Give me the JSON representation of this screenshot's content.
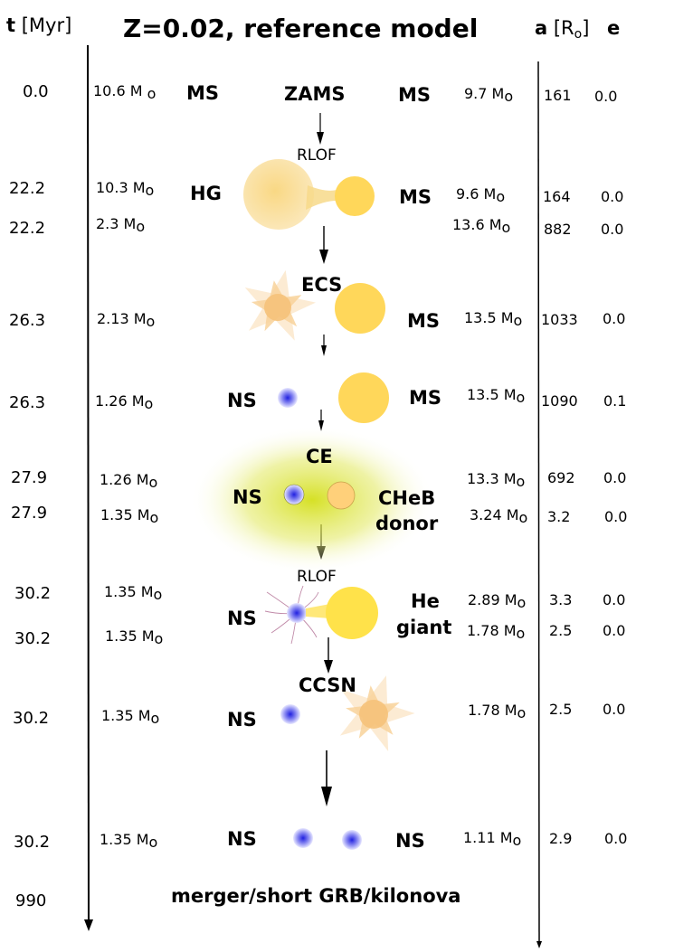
{
  "title": "Z=0.02, reference model",
  "headers": {
    "time_bold": "t",
    "time_unit": "[Myr]",
    "sep_bold": "a",
    "sep_unit_a": "[R",
    "sep_unit_sub": "o",
    "sep_unit_b": "]",
    "ecc": "e"
  },
  "mass_unit": "M",
  "mass_sub": "o",
  "stages": [
    {
      "t": "0.0",
      "m1": "10.6",
      "s1": "MS",
      "event": "ZAMS",
      "s2": "MS",
      "m2": "9.7",
      "a": "161",
      "e": "0.0"
    },
    {
      "t": "22.2",
      "m1": "10.3",
      "s1": "HG",
      "event": "RLOF",
      "s2": "MS",
      "m2": "9.6",
      "a": "164",
      "e": "0.0"
    },
    {
      "t": "22.2",
      "m1": "2.3",
      "m2": "13.6",
      "a": "882",
      "e": "0.0"
    },
    {
      "t": "26.3",
      "m1": "2.13",
      "event": "ECS",
      "s2": "MS",
      "m2": "13.5",
      "a": "1033",
      "e": "0.0"
    },
    {
      "t": "26.3",
      "m1": "1.26",
      "s1": "NS",
      "s2": "MS",
      "m2": "13.5",
      "a": "1090",
      "e": "0.1"
    },
    {
      "t": "27.9",
      "m1": "1.26",
      "s1": "NS",
      "event": "CE",
      "s2a": "CHeB",
      "s2b": "donor",
      "m2": "13.3",
      "a": "692",
      "e": "0.0"
    },
    {
      "t": "27.9",
      "m1": "1.35",
      "m2": "3.24",
      "a": "3.2",
      "e": "0.0"
    },
    {
      "t": "30.2",
      "m1": "1.35",
      "s1": "NS",
      "event": "RLOF",
      "s2a": "He",
      "s2b": "giant",
      "m2": "2.89",
      "a": "3.3",
      "e": "0.0"
    },
    {
      "t": "30.2",
      "m1": "1.35",
      "m2": "1.78",
      "a": "2.5",
      "e": "0.0"
    },
    {
      "t": "30.2",
      "m1": "1.35",
      "s1": "NS",
      "event": "CCSN",
      "m2": "1.78",
      "a": "2.5",
      "e": "0.0"
    },
    {
      "t": "30.2",
      "m1": "1.35",
      "s1": "NS",
      "s2": "NS",
      "m2": "1.11",
      "a": "2.9",
      "e": "0.0"
    },
    {
      "t": "990"
    }
  ],
  "footer": "merger/short GRB/kilonova",
  "colors": {
    "star": "#ffd75a",
    "giant": "#f7d98a",
    "ns_core": "#3a3af0",
    "ce_glow": "#d9e23a",
    "he_giant": "#ffe24a",
    "sn": "#f7c98a"
  }
}
